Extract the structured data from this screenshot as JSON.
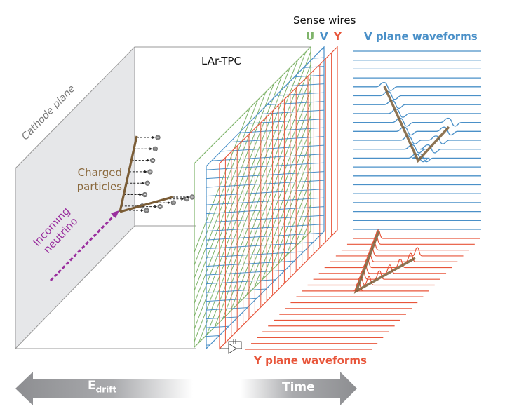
{
  "labels": {
    "lar_tpc": "LAr-TPC",
    "sense_wires": "Sense wires",
    "plane_u": "U",
    "plane_v": "V",
    "plane_y": "Y",
    "v_waveforms": "V plane waveforms",
    "y_waveforms": "Y plane waveforms",
    "cathode_plane": "Cathode plane",
    "charged_particles": "Charged particles",
    "incoming_neutrino": "Incoming neutrino",
    "e_drift_main": "E",
    "e_drift_sub": "drift",
    "time": "Time"
  },
  "colors": {
    "u_plane": "#7fb46a",
    "v_plane": "#4a90c8",
    "y_plane": "#e8553a",
    "track": "#7a5c35",
    "neutrino": "#9a2f9e",
    "charged_label": "#8b6a3e",
    "cathode_fill": "#e6e7e9",
    "arrow_gray": "#8d8e91"
  },
  "icons": {
    "amplifier": "amplifier-icon",
    "electron": "electron-icon"
  }
}
